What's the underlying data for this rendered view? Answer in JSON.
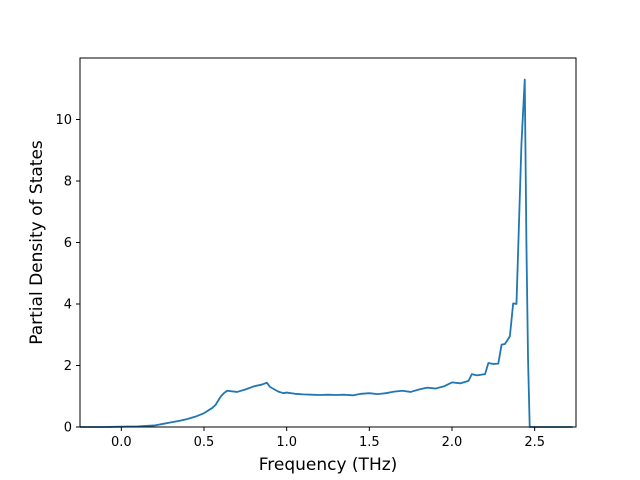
{
  "chart_data": {
    "type": "line",
    "title": "",
    "xlabel": "Frequency (THz)",
    "ylabel": "Partial Density of States",
    "xlim": [
      -0.25,
      2.75
    ],
    "ylim": [
      0,
      12
    ],
    "xticks": [
      0.0,
      0.5,
      1.0,
      1.5,
      2.0,
      2.5
    ],
    "xtick_labels": [
      "0.0",
      "0.5",
      "1.0",
      "1.5",
      "2.0",
      "2.5"
    ],
    "yticks": [
      0,
      2,
      4,
      6,
      8,
      10
    ],
    "ytick_labels": [
      "0",
      "2",
      "4",
      "6",
      "8",
      "10"
    ],
    "grid": false,
    "legend": "none",
    "series": [
      {
        "color": "#1f77b4",
        "x": [
          -0.25,
          -0.1,
          0.0,
          0.1,
          0.2,
          0.25,
          0.3,
          0.35,
          0.4,
          0.45,
          0.5,
          0.55,
          0.57,
          0.6,
          0.62,
          0.64,
          0.7,
          0.75,
          0.8,
          0.85,
          0.88,
          0.9,
          0.95,
          0.98,
          1.0,
          1.05,
          1.1,
          1.15,
          1.2,
          1.25,
          1.3,
          1.35,
          1.4,
          1.45,
          1.5,
          1.55,
          1.6,
          1.65,
          1.7,
          1.75,
          1.8,
          1.85,
          1.9,
          1.95,
          2.0,
          2.05,
          2.1,
          2.12,
          2.15,
          2.2,
          2.22,
          2.25,
          2.28,
          2.3,
          2.32,
          2.35,
          2.37,
          2.39,
          2.42,
          2.44,
          2.45,
          2.46,
          2.47,
          2.48,
          2.5,
          2.6,
          2.73
        ],
        "y": [
          0.0,
          0.0,
          0.01,
          0.02,
          0.05,
          0.1,
          0.15,
          0.2,
          0.26,
          0.34,
          0.45,
          0.62,
          0.72,
          0.98,
          1.1,
          1.18,
          1.14,
          1.22,
          1.32,
          1.38,
          1.44,
          1.3,
          1.15,
          1.1,
          1.12,
          1.08,
          1.06,
          1.05,
          1.04,
          1.05,
          1.04,
          1.05,
          1.03,
          1.08,
          1.1,
          1.07,
          1.1,
          1.15,
          1.18,
          1.14,
          1.22,
          1.28,
          1.25,
          1.32,
          1.45,
          1.42,
          1.5,
          1.72,
          1.68,
          1.72,
          2.08,
          2.05,
          2.06,
          2.68,
          2.7,
          2.95,
          4.02,
          4.0,
          9.2,
          11.3,
          6.0,
          2.2,
          0.0,
          0.0,
          0.0,
          0.0,
          0.0
        ]
      }
    ]
  }
}
